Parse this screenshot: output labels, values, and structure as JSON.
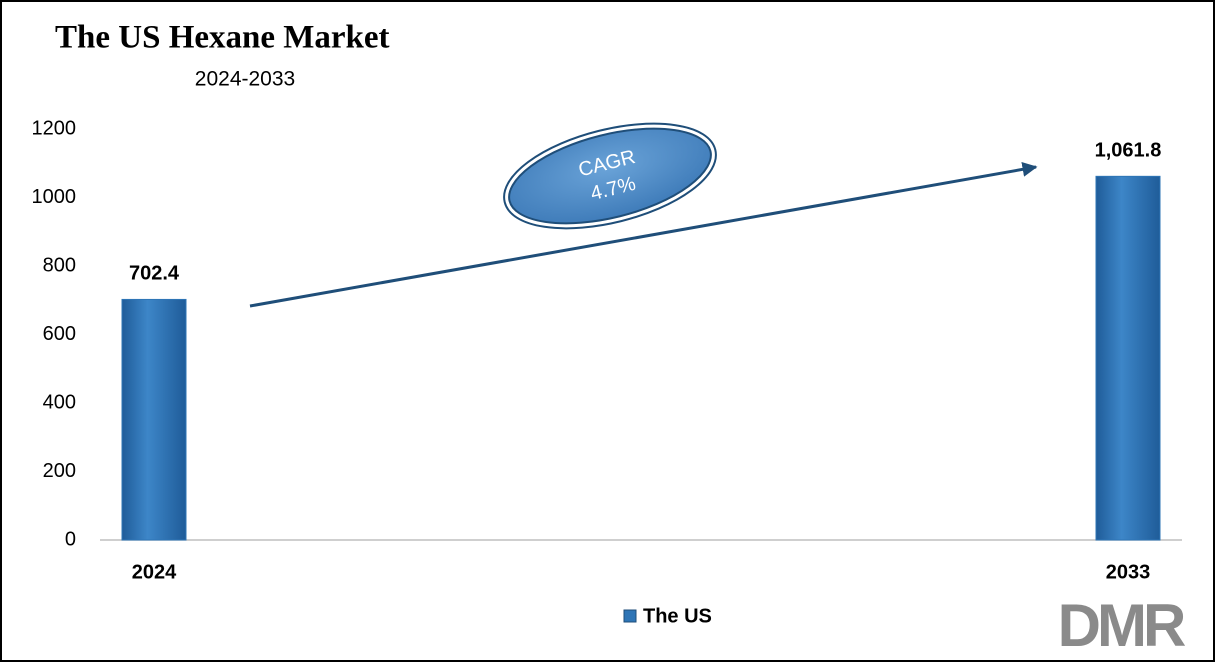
{
  "chart_data": {
    "type": "bar",
    "title": "The US Hexane Market",
    "subtitle": "2024-2033",
    "categories": [
      "2024",
      "2033"
    ],
    "series": [
      {
        "name": "The US",
        "color": "#2e75b6",
        "values": [
          702.4,
          1061.8
        ],
        "value_labels": [
          "702.4",
          "1,061.8"
        ]
      }
    ],
    "ylim": [
      0,
      1200
    ],
    "yticks": [
      0,
      200,
      400,
      600,
      800,
      1000,
      1200
    ],
    "annotation": {
      "label": "CAGR",
      "value": "4.7%"
    },
    "legend": "bottom",
    "logo": "DMR"
  }
}
